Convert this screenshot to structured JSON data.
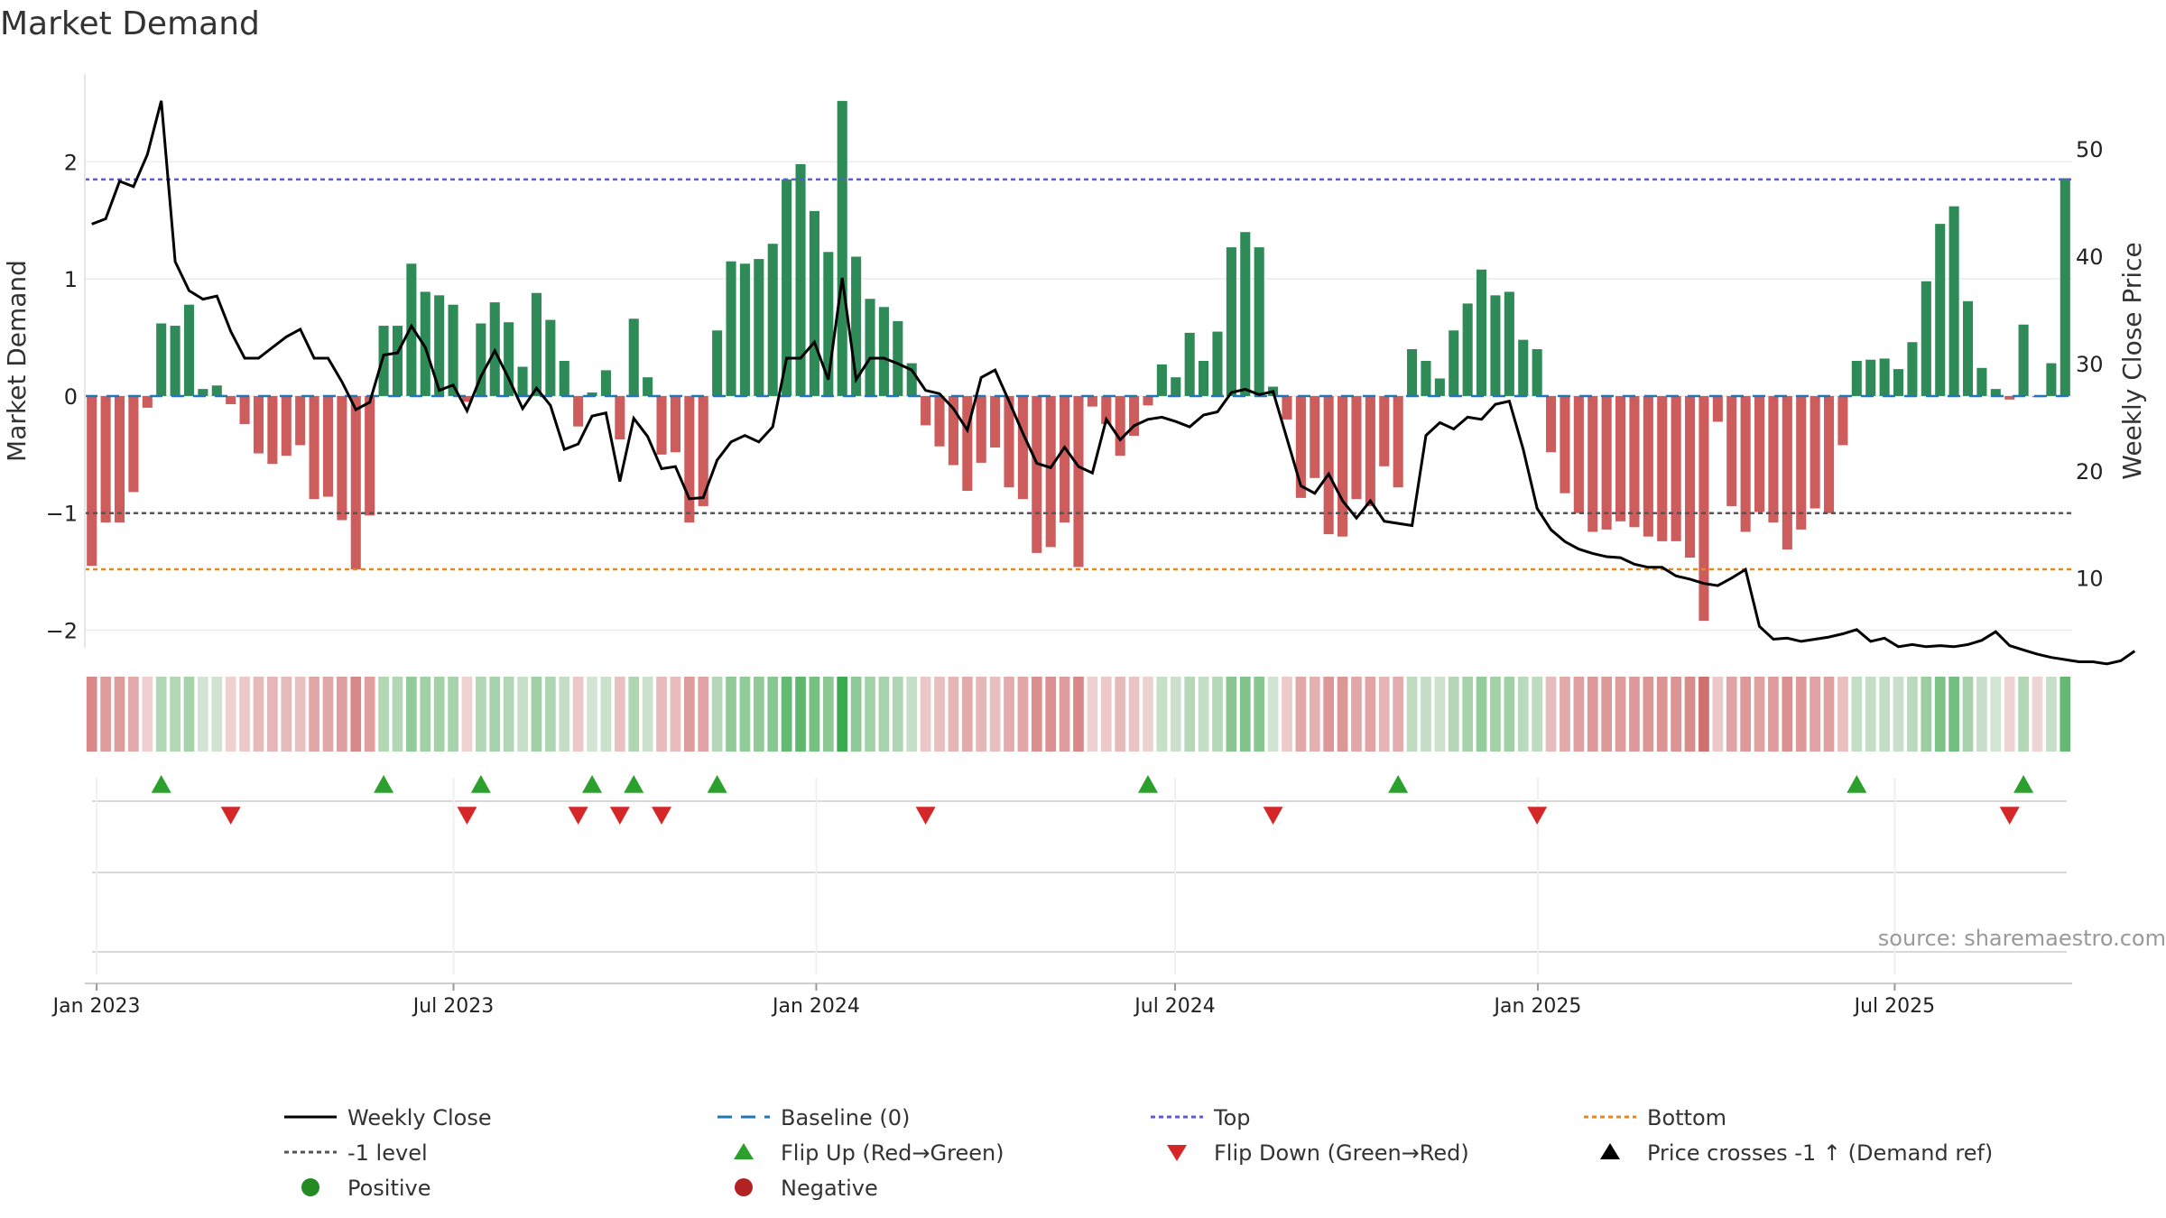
{
  "title": "Market Demand",
  "source": "source: sharemaestro.com",
  "colors": {
    "positive": "#2e8b57",
    "negative": "#cd5c5c",
    "price": "#000000",
    "top": "#5b5bd6",
    "minus_one": "#555555",
    "bottom": "#e08a1e",
    "baseline": "#1f77b4",
    "flip_up": "#2ca02c",
    "flip_down": "#d62728",
    "pos_dot": "#228b22",
    "neg_dot": "#b22222"
  },
  "chart_data": {
    "type": "bar",
    "title": "Market Demand",
    "ylabel": "Market Demand",
    "y2label": "Weekly Close Price",
    "ylim": [
      -2.15,
      2.75
    ],
    "y2lim": [
      3.5,
      57
    ],
    "yticks": [
      "2",
      "1",
      "0",
      "−1",
      "−2"
    ],
    "ytick_values": [
      2,
      1,
      0,
      -1,
      -2
    ],
    "y2ticks": [
      "50",
      "40",
      "30",
      "20",
      "10"
    ],
    "y2tick_values": [
      50,
      40,
      30,
      20,
      10
    ],
    "x_start": "2022-12-26",
    "x_end": "2025-09-29",
    "xticks": [
      {
        "label": "Jan 2023",
        "date": "2023-01-01"
      },
      {
        "label": "Jul 2023",
        "date": "2023-07-01"
      },
      {
        "label": "Jan 2024",
        "date": "2024-01-01"
      },
      {
        "label": "Jul 2024",
        "date": "2024-07-01"
      },
      {
        "label": "Jan 2025",
        "date": "2025-01-01"
      },
      {
        "label": "Jul 2025",
        "date": "2025-07-01"
      }
    ],
    "reference_lines": {
      "top": 1.85,
      "minus_one": -1.0,
      "bottom": -1.48,
      "baseline": 0
    },
    "demand": [
      -1.45,
      -1.08,
      -1.08,
      -0.82,
      -0.1,
      0.62,
      0.6,
      0.78,
      0.06,
      0.09,
      -0.07,
      -0.24,
      -0.49,
      -0.58,
      -0.51,
      -0.42,
      -0.88,
      -0.86,
      -1.06,
      -1.48,
      -1.02,
      0.6,
      0.6,
      1.13,
      0.89,
      0.86,
      0.78,
      -0.05,
      0.62,
      0.8,
      0.63,
      0.25,
      0.88,
      0.65,
      0.3,
      -0.26,
      0.03,
      0.22,
      -0.37,
      0.66,
      0.16,
      -0.5,
      -0.48,
      -1.08,
      -0.94,
      0.56,
      1.15,
      1.13,
      1.17,
      1.3,
      1.85,
      1.98,
      1.58,
      1.23,
      2.52,
      1.19,
      0.83,
      0.76,
      0.64,
      0.28,
      -0.25,
      -0.43,
      -0.59,
      -0.81,
      -0.57,
      -0.44,
      -0.78,
      -0.88,
      -1.34,
      -1.29,
      -1.08,
      -1.46,
      -0.09,
      -0.24,
      -0.51,
      -0.34,
      -0.08,
      0.27,
      0.16,
      0.54,
      0.3,
      0.55,
      1.27,
      1.4,
      1.27,
      0.08,
      -0.2,
      -0.87,
      -0.7,
      -1.18,
      -1.2,
      -0.88,
      -0.94,
      -0.6,
      -0.78,
      0.4,
      0.3,
      0.15,
      0.56,
      0.79,
      1.08,
      0.86,
      0.89,
      0.48,
      0.4,
      -0.48,
      -0.83,
      -1.0,
      -1.16,
      -1.14,
      -1.07,
      -1.12,
      -1.2,
      -1.24,
      -1.24,
      -1.38,
      -1.92,
      -0.22,
      -0.94,
      -1.16,
      -0.99,
      -1.08,
      -1.31,
      -1.14,
      -0.96,
      -1.0,
      -0.42,
      0.3,
      0.31,
      0.32,
      0.23,
      0.46,
      0.98,
      1.47,
      1.62,
      0.81,
      0.24,
      0.06,
      -0.03,
      0.61,
      -0.01,
      0.28,
      1.86
    ],
    "price": [
      43.0,
      43.5,
      47.0,
      46.5,
      49.5,
      54.5,
      39.5,
      36.8,
      36.0,
      36.3,
      33.0,
      30.5,
      30.5,
      31.5,
      32.5,
      33.2,
      30.5,
      30.5,
      28.3,
      25.7,
      26.4,
      30.8,
      31.0,
      33.5,
      31.5,
      27.5,
      28.0,
      25.6,
      28.8,
      31.2,
      28.6,
      25.8,
      27.7,
      26.1,
      22.0,
      22.5,
      25.1,
      25.4,
      19.0,
      24.9,
      23.2,
      20.2,
      20.4,
      17.4,
      17.5,
      21.0,
      22.7,
      23.3,
      22.7,
      24.1,
      30.5,
      30.5,
      32.0,
      28.5,
      38.0,
      28.5,
      30.5,
      30.5,
      30.0,
      29.4,
      27.5,
      27.2,
      25.8,
      23.8,
      28.7,
      29.4,
      26.5,
      23.5,
      20.7,
      20.3,
      22.2,
      20.4,
      19.8,
      24.8,
      22.9,
      24.2,
      24.8,
      25.0,
      24.6,
      24.1,
      25.2,
      25.5,
      27.3,
      27.6,
      27.1,
      27.4,
      23.0,
      18.6,
      17.9,
      19.7,
      17.2,
      15.6,
      17.2,
      15.3,
      15.1,
      14.9,
      23.3,
      24.5,
      23.9,
      25.0,
      24.8,
      26.2,
      26.5,
      22.0,
      16.5,
      14.5,
      13.4,
      12.7,
      12.3,
      12.0,
      11.9,
      11.3,
      11.0,
      11.0,
      10.2,
      9.9,
      9.5,
      9.3,
      10.0,
      10.8,
      5.5,
      4.3,
      4.4,
      4.1,
      4.3,
      4.5,
      4.8,
      5.2,
      4.1,
      4.4,
      3.6,
      3.8,
      3.6,
      3.7,
      3.6,
      3.8,
      4.2,
      5.0,
      3.7,
      3.3,
      2.9,
      2.6,
      2.4,
      2.2,
      2.2,
      2.0,
      2.3,
      3.2
    ],
    "flip_up_weeks": [
      5,
      21,
      28,
      36,
      39,
      45,
      76,
      94,
      127,
      139
    ],
    "flip_down_weeks": [
      10,
      27,
      35,
      38,
      41,
      60,
      85,
      104,
      138
    ],
    "band_rows": 3
  },
  "legend": [
    {
      "key": "weekly_close",
      "label": "Weekly Close"
    },
    {
      "key": "baseline",
      "label": "Baseline (0)"
    },
    {
      "key": "top",
      "label": "Top"
    },
    {
      "key": "bottom",
      "label": "Bottom"
    },
    {
      "key": "minus_one",
      "label": "-1 level"
    },
    {
      "key": "flip_up",
      "label": "Flip Up (Red→Green)"
    },
    {
      "key": "flip_down",
      "label": "Flip Down (Green→Red)"
    },
    {
      "key": "price_cross",
      "label": "Price crosses -1 ↑ (Demand ref)"
    },
    {
      "key": "positive",
      "label": "Positive"
    },
    {
      "key": "negative",
      "label": "Negative"
    }
  ]
}
